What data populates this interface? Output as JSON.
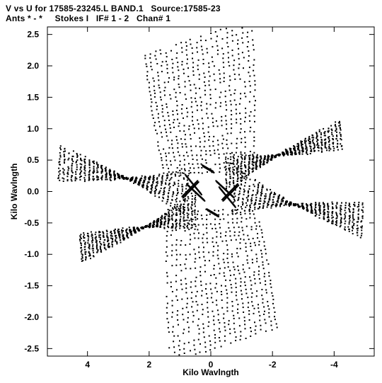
{
  "header": {
    "line1": "V vs U for 17585-23245.L BAND.1   Source:17585-23",
    "line2": "Ants * - *     Stokes I   IF# 1 - 2   Chan# 1"
  },
  "chart_data": {
    "type": "scatter",
    "xlabel": "Kilo Wavlngth",
    "ylabel": "Kilo Wavlngth",
    "xlim": [
      5.3,
      -5.3
    ],
    "ylim": [
      -2.62,
      2.62
    ],
    "x_ticks": [
      4,
      2,
      0,
      -2,
      -4
    ],
    "x_tick_labels": [
      "4",
      "2",
      "0",
      "-2",
      "-4"
    ],
    "y_ticks": [
      2.5,
      2.0,
      1.5,
      1.0,
      0.5,
      0.0,
      -0.5,
      -1.0,
      -1.5,
      -2.0,
      -2.5
    ],
    "y_tick_labels": [
      "2.5",
      "2.0",
      "1.5",
      "1.0",
      "0.5",
      "0.0",
      "-0.5",
      "-1.0",
      "-1.5",
      "-2.0",
      "-2.5"
    ],
    "grid": false,
    "legend": "none",
    "marker_color": "#000000",
    "pattern": "six-armed star uv-coverage (symmetric)",
    "arms": [
      {
        "name": "arm-up",
        "tip": [
          0.4,
          2.45
        ],
        "base_start": [
          1.5,
          0.3
        ],
        "base_end": [
          -1.4,
          0.3
        ],
        "tip_width": 3.5
      },
      {
        "name": "arm-down",
        "tip": [
          -0.4,
          -2.45
        ],
        "base_start": [
          -1.5,
          -0.3
        ],
        "base_end": [
          1.4,
          -0.3
        ],
        "tip_width": 3.5
      },
      {
        "name": "arm-upper-left",
        "tip": [
          4.9,
          0.45
        ],
        "base_start": [
          0.7,
          0.35
        ],
        "base_end": [
          0.9,
          -0.35
        ],
        "tip_width": 0.55
      },
      {
        "name": "arm-lower-right",
        "tip": [
          -4.9,
          -0.45
        ],
        "base_start": [
          -0.7,
          -0.35
        ],
        "base_end": [
          -0.9,
          0.35
        ],
        "tip_width": 0.55
      },
      {
        "name": "arm-lower-left",
        "tip": [
          4.2,
          -0.9
        ],
        "base_start": [
          0.5,
          0.0
        ],
        "base_end": [
          0.5,
          -0.6
        ],
        "tip_width": 0.45
      },
      {
        "name": "arm-upper-right",
        "tip": [
          -4.2,
          0.9
        ],
        "base_start": [
          -0.5,
          0.0
        ],
        "base_end": [
          -0.5,
          0.6
        ],
        "tip_width": 0.45
      }
    ],
    "center_streaks": [
      [
        [
          0.8,
          0.25
        ],
        [
          0.3,
          -0.05
        ]
      ],
      [
        [
          0.75,
          0.1
        ],
        [
          0.2,
          -0.15
        ]
      ],
      [
        [
          -0.8,
          -0.25
        ],
        [
          -0.3,
          0.05
        ]
      ],
      [
        [
          -0.75,
          -0.1
        ],
        [
          -0.2,
          0.15
        ]
      ],
      [
        [
          0.9,
          -0.1
        ],
        [
          0.4,
          0.15
        ]
      ],
      [
        [
          -0.9,
          0.1
        ],
        [
          -0.4,
          -0.15
        ]
      ],
      [
        [
          0.25,
          0.4
        ],
        [
          -0.1,
          0.3
        ]
      ],
      [
        [
          -0.25,
          -0.4
        ],
        [
          0.1,
          -0.3
        ]
      ]
    ]
  }
}
